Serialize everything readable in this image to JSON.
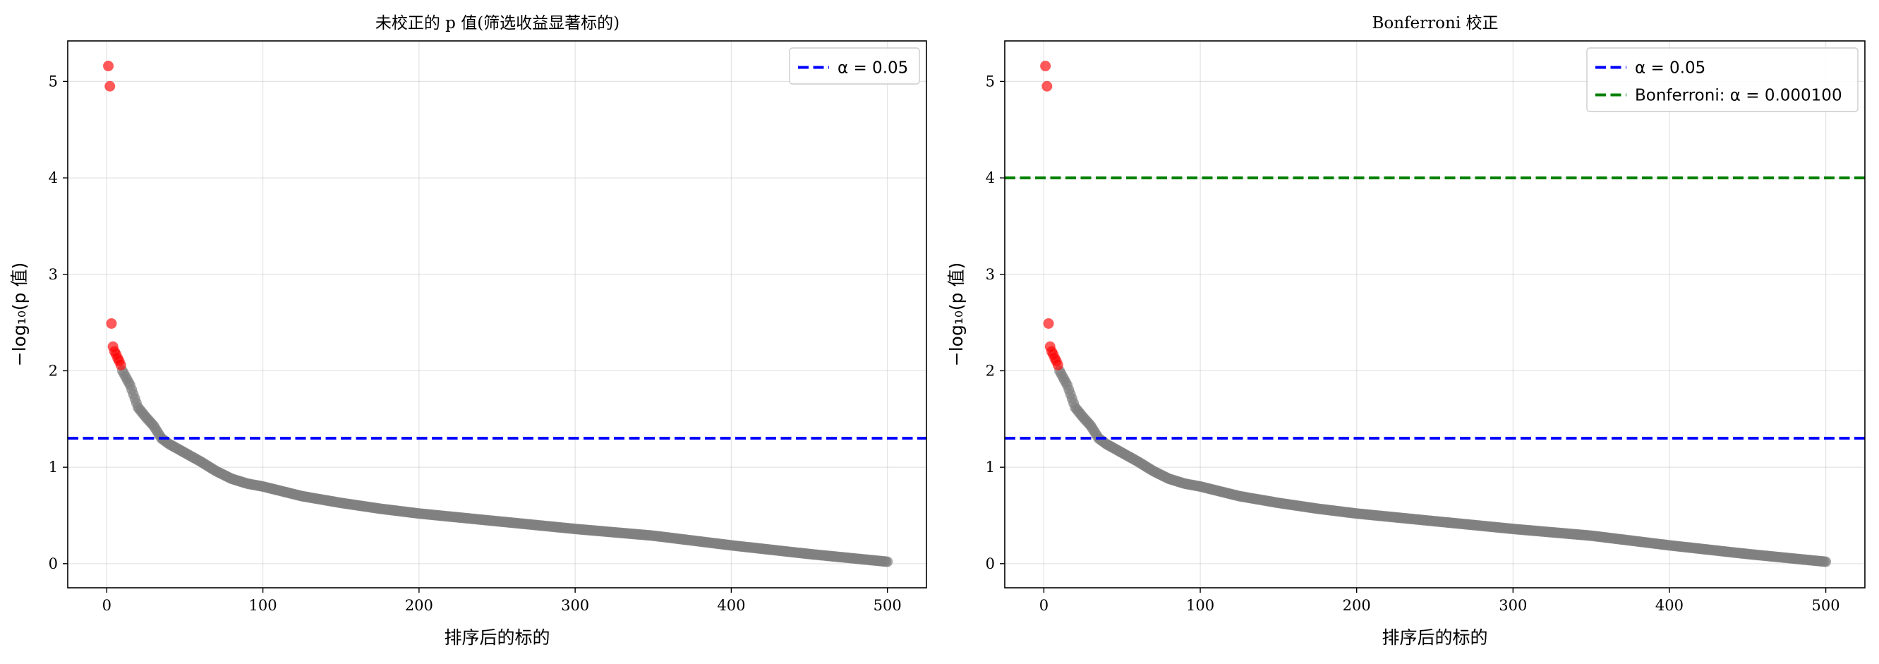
{
  "chart_data": [
    {
      "type": "scatter",
      "title": "未校正的 p 值(筛选收益显著标的)",
      "xlabel": "排序后的标的",
      "ylabel": "−log₁₀(p 值)",
      "xlim": [
        -25,
        525
      ],
      "ylim": [
        -0.25,
        5.42
      ],
      "xticks": [
        0,
        100,
        200,
        300,
        400,
        500
      ],
      "yticks": [
        0,
        1,
        2,
        3,
        4,
        5
      ],
      "grid": true,
      "legend_position": "top-right",
      "n_points": 500,
      "significant_points": [
        {
          "x": 1,
          "y": 5.16
        },
        {
          "x": 2,
          "y": 4.95
        },
        {
          "x": 3,
          "y": 2.49
        },
        {
          "x": 4,
          "y": 2.25
        },
        {
          "x": 5,
          "y": 2.2
        },
        {
          "x": 6,
          "y": 2.17
        },
        {
          "x": 7,
          "y": 2.13
        },
        {
          "x": 8,
          "y": 2.1
        },
        {
          "x": 9,
          "y": 2.06
        }
      ],
      "curve_keypoints": [
        [
          10,
          2.0
        ],
        [
          15,
          1.85
        ],
        [
          20,
          1.62
        ],
        [
          25,
          1.52
        ],
        [
          30,
          1.43
        ],
        [
          35,
          1.3
        ],
        [
          40,
          1.24
        ],
        [
          50,
          1.15
        ],
        [
          60,
          1.06
        ],
        [
          70,
          0.96
        ],
        [
          80,
          0.88
        ],
        [
          90,
          0.83
        ],
        [
          100,
          0.8
        ],
        [
          125,
          0.7
        ],
        [
          150,
          0.63
        ],
        [
          175,
          0.57
        ],
        [
          200,
          0.52
        ],
        [
          250,
          0.44
        ],
        [
          300,
          0.36
        ],
        [
          350,
          0.29
        ],
        [
          400,
          0.19
        ],
        [
          450,
          0.1
        ],
        [
          500,
          0.02
        ]
      ],
      "colors": {
        "significant": "#ff0000",
        "other": "#808080",
        "alpha_line": "#0000ff"
      },
      "reference_lines": [
        {
          "label": "α = 0.05",
          "y": 1.301,
          "color": "#0000ff"
        }
      ]
    },
    {
      "type": "scatter",
      "title": "Bonferroni 校正",
      "xlabel": "排序后的标的",
      "ylabel": "−log₁₀(p 值)",
      "xlim": [
        -25,
        525
      ],
      "ylim": [
        -0.25,
        5.42
      ],
      "xticks": [
        0,
        100,
        200,
        300,
        400,
        500
      ],
      "yticks": [
        0,
        1,
        2,
        3,
        4,
        5
      ],
      "grid": true,
      "legend_position": "top-right",
      "n_points": 500,
      "significant_points": [
        {
          "x": 1,
          "y": 5.16
        },
        {
          "x": 2,
          "y": 4.95
        },
        {
          "x": 3,
          "y": 2.49
        },
        {
          "x": 4,
          "y": 2.25
        },
        {
          "x": 5,
          "y": 2.2
        },
        {
          "x": 6,
          "y": 2.17
        },
        {
          "x": 7,
          "y": 2.13
        },
        {
          "x": 8,
          "y": 2.1
        },
        {
          "x": 9,
          "y": 2.06
        }
      ],
      "curve_keypoints": [
        [
          10,
          2.0
        ],
        [
          15,
          1.85
        ],
        [
          20,
          1.62
        ],
        [
          25,
          1.52
        ],
        [
          30,
          1.43
        ],
        [
          35,
          1.3
        ],
        [
          40,
          1.24
        ],
        [
          50,
          1.15
        ],
        [
          60,
          1.06
        ],
        [
          70,
          0.96
        ],
        [
          80,
          0.88
        ],
        [
          90,
          0.83
        ],
        [
          100,
          0.8
        ],
        [
          125,
          0.7
        ],
        [
          150,
          0.63
        ],
        [
          175,
          0.57
        ],
        [
          200,
          0.52
        ],
        [
          250,
          0.44
        ],
        [
          300,
          0.36
        ],
        [
          350,
          0.29
        ],
        [
          400,
          0.19
        ],
        [
          450,
          0.1
        ],
        [
          500,
          0.02
        ]
      ],
      "colors": {
        "significant": "#ff0000",
        "other": "#808080",
        "alpha_line": "#0000ff",
        "bonferroni_line": "#008000"
      },
      "reference_lines": [
        {
          "label": "α = 0.05",
          "y": 1.301,
          "color": "#0000ff"
        },
        {
          "label": "Bonferroni: α = 0.000100",
          "y": 4.0,
          "color": "#008000"
        }
      ]
    }
  ]
}
